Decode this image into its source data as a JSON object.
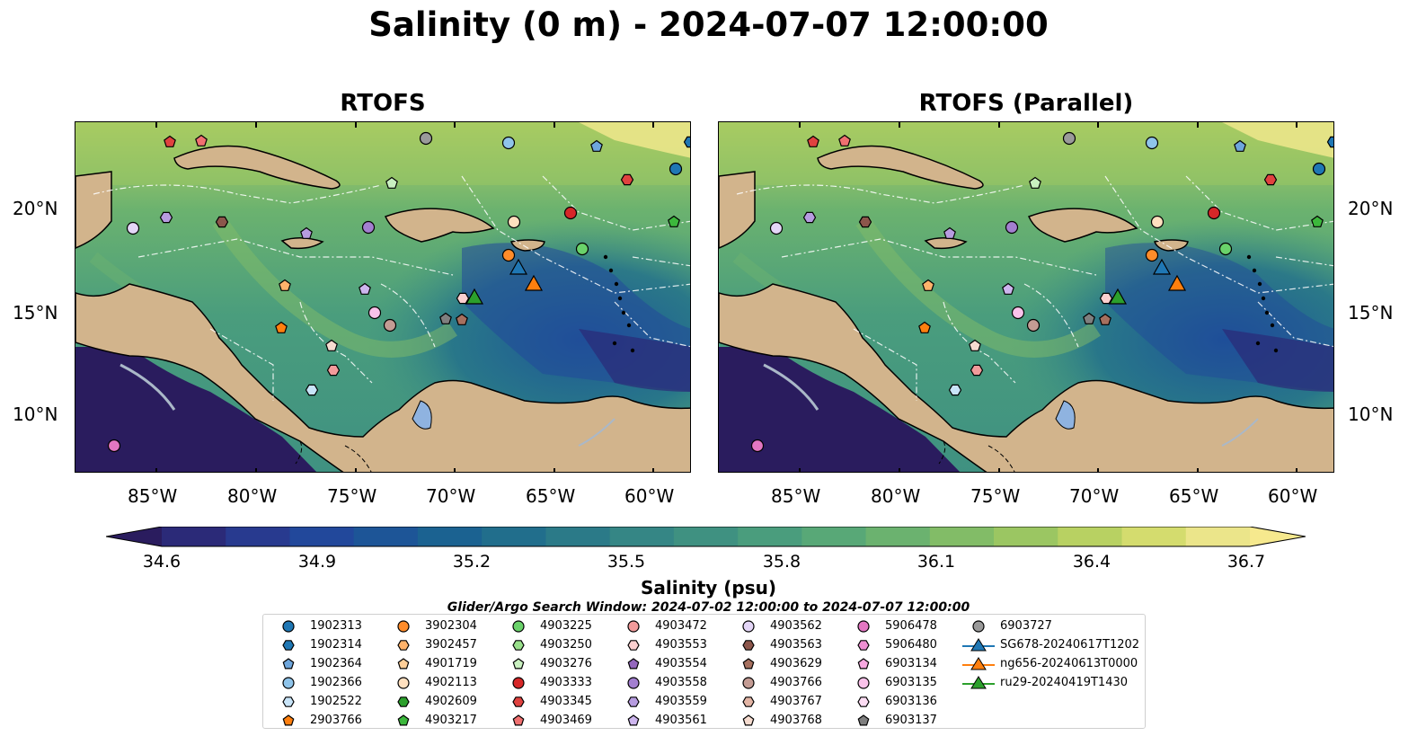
{
  "title": "Salinity (0 m) - 2024-07-07 12:00:00",
  "panels": [
    {
      "title": "RTOFS"
    },
    {
      "title": "RTOFS (Parallel)"
    }
  ],
  "lon_ticks": [
    "85°W",
    "80°W",
    "75°W",
    "70°W",
    "65°W",
    "60°W"
  ],
  "lat_ticks": [
    "20°N",
    "15°N",
    "10°N"
  ],
  "colorbar": {
    "label": "Salinity (psu)",
    "ticks": [
      "34.6",
      "34.9",
      "35.2",
      "35.5",
      "35.8",
      "36.1",
      "36.4",
      "36.7"
    ],
    "colors": [
      "#2a1c5e",
      "#2b2a78",
      "#283a8f",
      "#22489b",
      "#1d5597",
      "#1b6291",
      "#216e8c",
      "#2b7a88",
      "#358685",
      "#3f9181",
      "#4a9d7d",
      "#58a877",
      "#6bb26f",
      "#82bc67",
      "#9bc662",
      "#b8d162",
      "#d4dc6e",
      "#ebe58a",
      "#f6e98e"
    ]
  },
  "search_window": "Glider/Argo Search Window: 2024-07-02 12:00:00 to 2024-07-07 12:00:00",
  "colors": {
    "land": "#d2b48c",
    "ocean_mid": "#3f9181",
    "lake": "#8fb3e0"
  },
  "legend": [
    {
      "label": "1902313",
      "marker": "circle",
      "color": "#1f77b4"
    },
    {
      "label": "1902314",
      "marker": "hexagon",
      "color": "#1f77b4"
    },
    {
      "label": "1902364",
      "marker": "pentagon",
      "color": "#6ea6dc"
    },
    {
      "label": "1902366",
      "marker": "circle",
      "color": "#8fc4ea"
    },
    {
      "label": "1902522",
      "marker": "hexagon",
      "color": "#c8e4f8"
    },
    {
      "label": "2903766",
      "marker": "pentagon",
      "color": "#ff7f0e"
    },
    {
      "label": "3902304",
      "marker": "circle",
      "color": "#ff8c2a"
    },
    {
      "label": "3902457",
      "marker": "hexagon",
      "color": "#ffb36b"
    },
    {
      "label": "4901719",
      "marker": "pentagon",
      "color": "#ffcf99"
    },
    {
      "label": "4902113",
      "marker": "circle",
      "color": "#ffe0bf"
    },
    {
      "label": "4902609",
      "marker": "hexagon",
      "color": "#2ca02c"
    },
    {
      "label": "4903217",
      "marker": "pentagon",
      "color": "#3cb83c"
    },
    {
      "label": "4903225",
      "marker": "circle",
      "color": "#6ad26a"
    },
    {
      "label": "4903250",
      "marker": "hexagon",
      "color": "#98df8a"
    },
    {
      "label": "4903276",
      "marker": "pentagon",
      "color": "#c9f0c0"
    },
    {
      "label": "4903333",
      "marker": "circle",
      "color": "#d62728"
    },
    {
      "label": "4903345",
      "marker": "hexagon",
      "color": "#e0423f"
    },
    {
      "label": "4903469",
      "marker": "pentagon",
      "color": "#f07070"
    },
    {
      "label": "4903472",
      "marker": "circle",
      "color": "#f29b9b"
    },
    {
      "label": "4903553",
      "marker": "hexagon",
      "color": "#fbd0d0"
    },
    {
      "label": "4903554",
      "marker": "pentagon",
      "color": "#9467bd"
    },
    {
      "label": "4903558",
      "marker": "circle",
      "color": "#a37fd0"
    },
    {
      "label": "4903559",
      "marker": "hexagon",
      "color": "#b79ce0"
    },
    {
      "label": "4903561",
      "marker": "pentagon",
      "color": "#cdb5ee"
    },
    {
      "label": "4903562",
      "marker": "circle",
      "color": "#e4d6f7"
    },
    {
      "label": "4903563",
      "marker": "hexagon",
      "color": "#8c564b"
    },
    {
      "label": "4903629",
      "marker": "pentagon",
      "color": "#a6705f"
    },
    {
      "label": "4903766",
      "marker": "circle",
      "color": "#c49c94"
    },
    {
      "label": "4903767",
      "marker": "hexagon",
      "color": "#e3b5a5"
    },
    {
      "label": "4903768",
      "marker": "pentagon",
      "color": "#f6dcd0"
    },
    {
      "label": "5906478",
      "marker": "circle",
      "color": "#e377c2"
    },
    {
      "label": "5906480",
      "marker": "hexagon",
      "color": "#ee8fd3"
    },
    {
      "label": "6903134",
      "marker": "pentagon",
      "color": "#f7a8e0"
    },
    {
      "label": "6903135",
      "marker": "circle",
      "color": "#fac2ea"
    },
    {
      "label": "6903136",
      "marker": "hexagon",
      "color": "#fdddf4"
    },
    {
      "label": "6903137",
      "marker": "pentagon",
      "color": "#7f7f7f"
    },
    {
      "label": "6903727",
      "marker": "circle",
      "color": "#9a9a9a"
    },
    {
      "label": "SG678-20240617T1202",
      "marker": "triangle-line",
      "color": "#1f77b4"
    },
    {
      "label": "ng656-20240613T0000",
      "marker": "triangle-line",
      "color": "#ff7f0e"
    },
    {
      "label": "ru29-20240419T1430",
      "marker": "triangle-line",
      "color": "#2ca02c"
    }
  ]
}
